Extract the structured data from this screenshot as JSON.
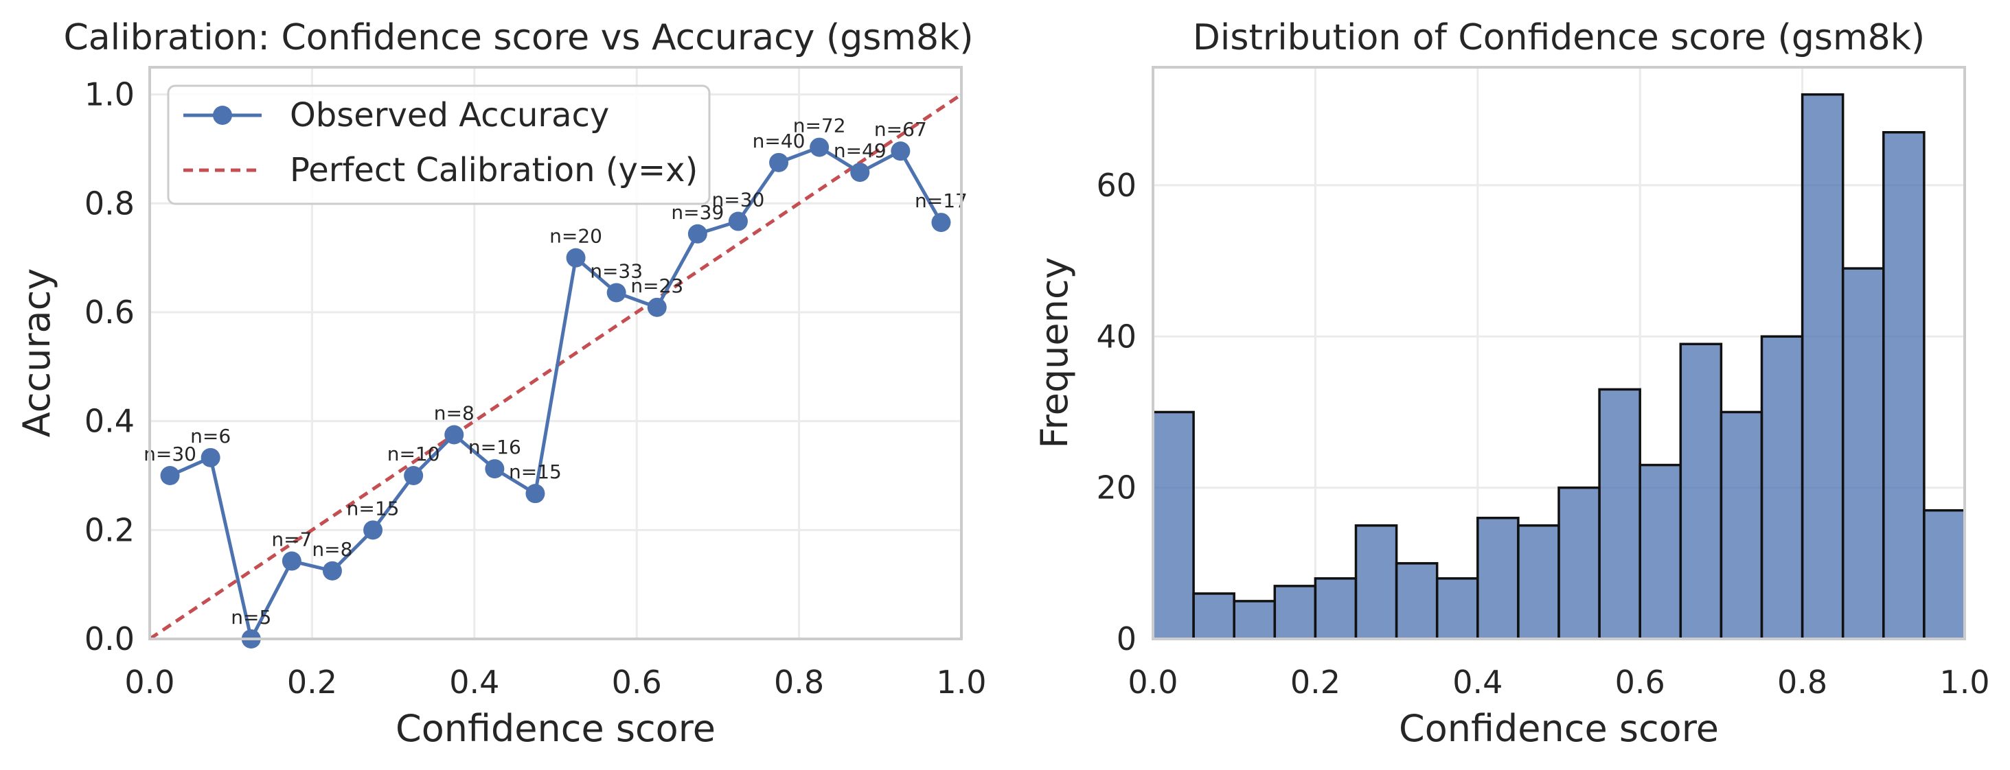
{
  "chart_data": [
    {
      "type": "line",
      "title": "Calibration: Confidence score vs Accuracy (gsm8k)",
      "xlabel": "Confidence score",
      "ylabel": "Accuracy",
      "xlim": [
        0,
        1
      ],
      "ylim": [
        0,
        1.05
      ],
      "xticks": [
        "0.0",
        "0.2",
        "0.4",
        "0.6",
        "0.8",
        "1.0"
      ],
      "yticks": [
        "0.0",
        "0.2",
        "0.4",
        "0.6",
        "0.8",
        "1.0"
      ],
      "grid": true,
      "legend_position": "top-left",
      "legend": [
        "Observed Accuracy",
        "Perfect Calibration (y=x)"
      ],
      "colors": {
        "observed": "#4c72b0",
        "perfect": "#c44e52"
      },
      "series": [
        {
          "name": "Observed Accuracy",
          "x": [
            0.025,
            0.075,
            0.125,
            0.175,
            0.225,
            0.275,
            0.325,
            0.375,
            0.425,
            0.475,
            0.525,
            0.575,
            0.625,
            0.675,
            0.725,
            0.775,
            0.825,
            0.875,
            0.925,
            0.975
          ],
          "y": [
            0.3,
            0.333,
            0.0,
            0.143,
            0.125,
            0.2,
            0.3,
            0.375,
            0.3125,
            0.267,
            0.7,
            0.636,
            0.609,
            0.744,
            0.767,
            0.875,
            0.903,
            0.857,
            0.896,
            0.765
          ],
          "labels": [
            "n=30",
            "n=6",
            "n=5",
            "n=7",
            "n=8",
            "n=15",
            "n=10",
            "n=8",
            "n=16",
            "n=15",
            "n=20",
            "n=33",
            "n=23",
            "n=39",
            "n=30",
            "n=40",
            "n=72",
            "n=49",
            "n=67",
            "n=17"
          ]
        },
        {
          "name": "Perfect Calibration (y=x)",
          "x": [
            0,
            1
          ],
          "y": [
            0,
            1
          ]
        }
      ]
    },
    {
      "type": "bar",
      "title": "Distribution of Confidence score (gsm8k)",
      "xlabel": "Confidence score",
      "ylabel": "Frequency",
      "xlim": [
        0,
        1
      ],
      "ylim": [
        0,
        75.6
      ],
      "xticks": [
        "0.0",
        "0.2",
        "0.4",
        "0.6",
        "0.8",
        "1.0"
      ],
      "yticks": [
        "0",
        "20",
        "40",
        "60"
      ],
      "grid": true,
      "bin_edges": [
        0,
        0.05,
        0.1,
        0.15,
        0.2,
        0.25,
        0.3,
        0.35,
        0.4,
        0.45,
        0.5,
        0.55,
        0.6,
        0.65,
        0.7,
        0.75,
        0.8,
        0.85,
        0.9,
        0.95,
        1.0
      ],
      "values": [
        30,
        6,
        5,
        7,
        8,
        15,
        10,
        8,
        16,
        15,
        20,
        33,
        23,
        39,
        30,
        40,
        72,
        49,
        67,
        17
      ],
      "colors": {
        "bar": "#4c72b0"
      }
    }
  ]
}
